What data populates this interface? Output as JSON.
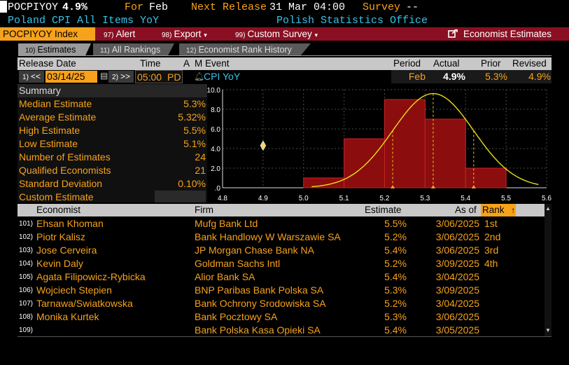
{
  "header": {
    "ticker": "POCPIYOY",
    "value": "4.9%",
    "for_label": "For",
    "for_value": "Feb",
    "next_release_label": "Next Release",
    "next_release_value": "31 Mar 04:00",
    "survey_label": "Survey",
    "survey_value": "--",
    "title": "Poland CPI All Items YoY",
    "source": "Polish Statistics Office"
  },
  "menu": {
    "index_label": "POCPIYOY Index",
    "alert": {
      "num": "97)",
      "label": "Alert"
    },
    "export": {
      "num": "98)",
      "label": "Export"
    },
    "custom_survey": {
      "num": "99)",
      "label": "Custom Survey"
    },
    "economist_estimates": "Economist Estimates"
  },
  "tabs": [
    {
      "num": "10)",
      "label": "Estimates"
    },
    {
      "num": "11)",
      "label": "All Rankings"
    },
    {
      "num": "12)",
      "label": "Economist Rank History"
    }
  ],
  "release_header": {
    "release_date": "Release Date",
    "time": "Time",
    "a": "A",
    "m": "M",
    "event": "Event",
    "period": "Period",
    "actual": "Actual",
    "prior": "Prior",
    "revised": "Revised"
  },
  "release_row": {
    "prev_num": "1)",
    "date": "03/14/25",
    "next_num": "2)",
    "time": "05:00",
    "tz": "PD",
    "event": "CPI YoY",
    "period": "Feb",
    "actual": "4.9%",
    "prior": "5.3%",
    "revised": "4.9%"
  },
  "summary": {
    "title": "Summary",
    "rows": [
      {
        "label": "Median Estimate",
        "value": "5.3%"
      },
      {
        "label": "Average Estimate",
        "value": "5.32%"
      },
      {
        "label": "High Estimate",
        "value": "5.5%"
      },
      {
        "label": "Low Estimate",
        "value": "5.1%"
      },
      {
        "label": "Number of Estimates",
        "value": "24"
      },
      {
        "label": "Qualified Economists",
        "value": "21"
      },
      {
        "label": "Standard Deviation",
        "value": "0.10%"
      },
      {
        "label": "Custom Estimate",
        "value": ""
      }
    ]
  },
  "colors": {
    "orange": "#f7a21b",
    "cyan": "#36c4e8",
    "menu_bar": "#8a0f22",
    "bar_fill": "#8b0d0d",
    "curve": "#e8e01a"
  },
  "chart_data": {
    "type": "bar",
    "categories": [
      "5.0-5.1",
      "5.1-5.2",
      "5.2-5.3",
      "5.3-5.4",
      "5.4-5.5",
      "5.5-5.6"
    ],
    "bins": [
      [
        5.0,
        5.1
      ],
      [
        5.1,
        5.2
      ],
      [
        5.2,
        5.3
      ],
      [
        5.3,
        5.4
      ],
      [
        5.4,
        5.5
      ],
      [
        5.5,
        5.6
      ]
    ],
    "values": [
      1,
      5,
      9,
      7,
      2,
      0
    ],
    "x_ticks": [
      "4.8",
      "4.9",
      "5.0",
      "5.1",
      "5.2",
      "5.3",
      "5.4",
      "5.5",
      "5.6"
    ],
    "y_ticks": [
      "10.0",
      "8.0",
      "6.0",
      "4.0",
      "2.0",
      ".0"
    ],
    "xlim": [
      4.8,
      5.6
    ],
    "ylim": [
      0,
      10
    ],
    "actual_marker": 4.9,
    "vlines": [
      5.22,
      5.32,
      5.42
    ],
    "curve_mean": 5.32,
    "curve_sd": 0.1,
    "curve_peak": 9.6,
    "grid": true
  },
  "table": {
    "headers": {
      "economist": "Economist",
      "firm": "Firm",
      "estimate": "Estimate",
      "as_of": "As of",
      "rank": "Rank"
    },
    "rows": [
      {
        "num": "101)",
        "economist": "Ehsan Khoman",
        "firm": "Mufg Bank Ltd",
        "estimate": "5.5%",
        "as_of": "3/06/2025",
        "rank": "1st"
      },
      {
        "num": "102)",
        "economist": "Piotr Kalisz",
        "firm": "Bank Handlowy W Warszawie SA",
        "estimate": "5.2%",
        "as_of": "3/06/2025",
        "rank": "2nd"
      },
      {
        "num": "103)",
        "economist": "Jose Cerveira",
        "firm": "JP Morgan Chase Bank NA",
        "estimate": "5.4%",
        "as_of": "3/06/2025",
        "rank": "3rd"
      },
      {
        "num": "104)",
        "economist": "Kevin Daly",
        "firm": "Goldman Sachs Intl",
        "estimate": "5.2%",
        "as_of": "3/09/2025",
        "rank": "4th"
      },
      {
        "num": "105)",
        "economist": "Agata Filipowicz-Rybicka",
        "firm": "Alior Bank SA",
        "estimate": "5.4%",
        "as_of": "3/04/2025",
        "rank": ""
      },
      {
        "num": "106)",
        "economist": "Wojciech Stepien",
        "firm": "BNP Paribas Bank Polska SA",
        "estimate": "5.3%",
        "as_of": "3/09/2025",
        "rank": ""
      },
      {
        "num": "107)",
        "economist": "Tarnawa/Swiatkowska",
        "firm": "Bank Ochrony Srodowiska SA",
        "estimate": "5.2%",
        "as_of": "3/04/2025",
        "rank": ""
      },
      {
        "num": "108)",
        "economist": "Monika Kurtek",
        "firm": "Bank Pocztowy SA",
        "estimate": "5.3%",
        "as_of": "3/06/2025",
        "rank": ""
      },
      {
        "num": "109)",
        "economist": "",
        "firm": "Bank Polska Kasa Opieki SA",
        "estimate": "5.4%",
        "as_of": "3/05/2025",
        "rank": ""
      }
    ]
  }
}
